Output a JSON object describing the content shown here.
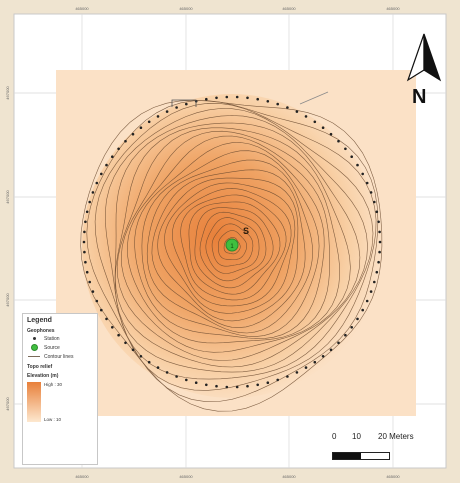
{
  "map": {
    "grid_labels_top": [
      "465000",
      "465000",
      "465000",
      "465000",
      "465000"
    ],
    "grid_labels_bottom": [
      "465000",
      "465000",
      "465000",
      "465000",
      "465000"
    ],
    "grid_labels_left": [
      "467000",
      "467000",
      "467000",
      "467000"
    ],
    "source_label": "S",
    "source_marker_label": "1"
  },
  "legend": {
    "title": "Legend",
    "geophones_heading": "Geophones",
    "geophone_label": "Station",
    "source_label": "Source",
    "contour_label": "Contour lines",
    "topo_heading": "Topo relief",
    "elevation_heading": "Elevation (m)",
    "high_label": "High : 30",
    "low_label": "Low : 10"
  },
  "scale": {
    "labels": [
      "0",
      "10",
      "20 Meters"
    ]
  },
  "north": {
    "label": "N"
  },
  "colors": {
    "raster_low": "#fde8cf",
    "raster_high": "#e8803a",
    "contour": "#6b4a2f",
    "source": "#3fbf3f"
  }
}
